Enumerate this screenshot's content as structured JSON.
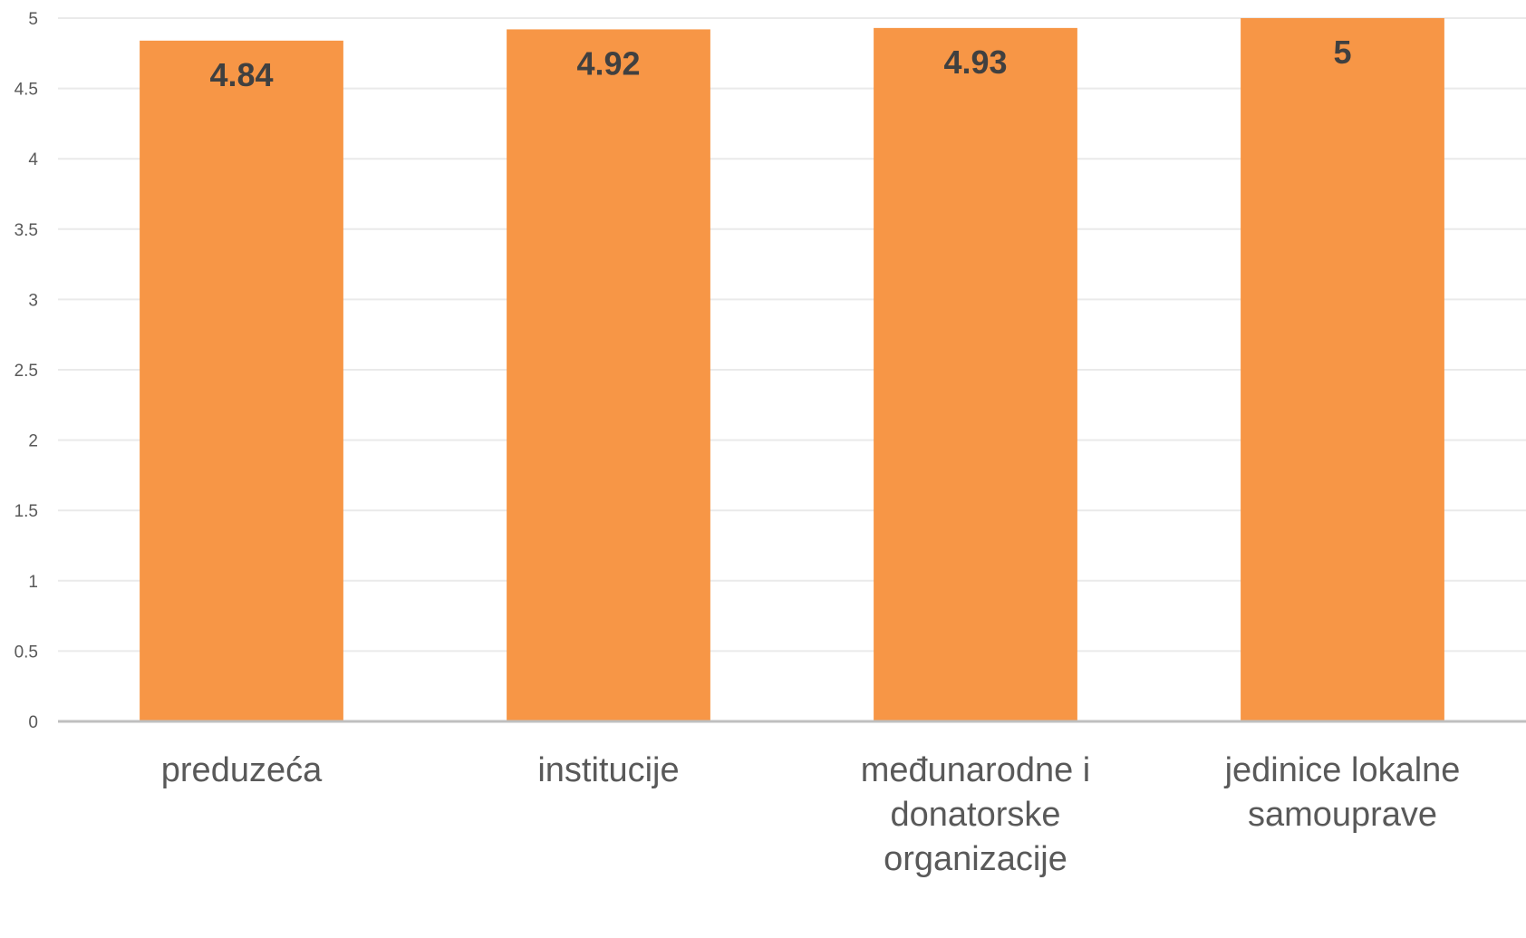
{
  "chart_data": {
    "type": "bar",
    "categories": [
      [
        "preduzeća"
      ],
      [
        "institucije"
      ],
      [
        "međunarodne i",
        "donatorske",
        "organizacije"
      ],
      [
        "jedinice lokalne",
        "samouprave"
      ]
    ],
    "values": [
      4.84,
      4.92,
      4.93,
      5
    ],
    "data_labels": [
      "4.84",
      "4.92",
      "4.93",
      "5"
    ],
    "y_ticks": [
      "0",
      "0.5",
      "1",
      "1.5",
      "2",
      "2.5",
      "3",
      "3.5",
      "4",
      "4.5",
      "5"
    ],
    "ylim": [
      0,
      5
    ],
    "grid": true,
    "legend": "none",
    "title": "",
    "xlabel": "",
    "ylabel": "",
    "colors": {
      "bar": "#F79646",
      "grid": "#EAEAEA",
      "axis": "#BFBFBF"
    }
  }
}
